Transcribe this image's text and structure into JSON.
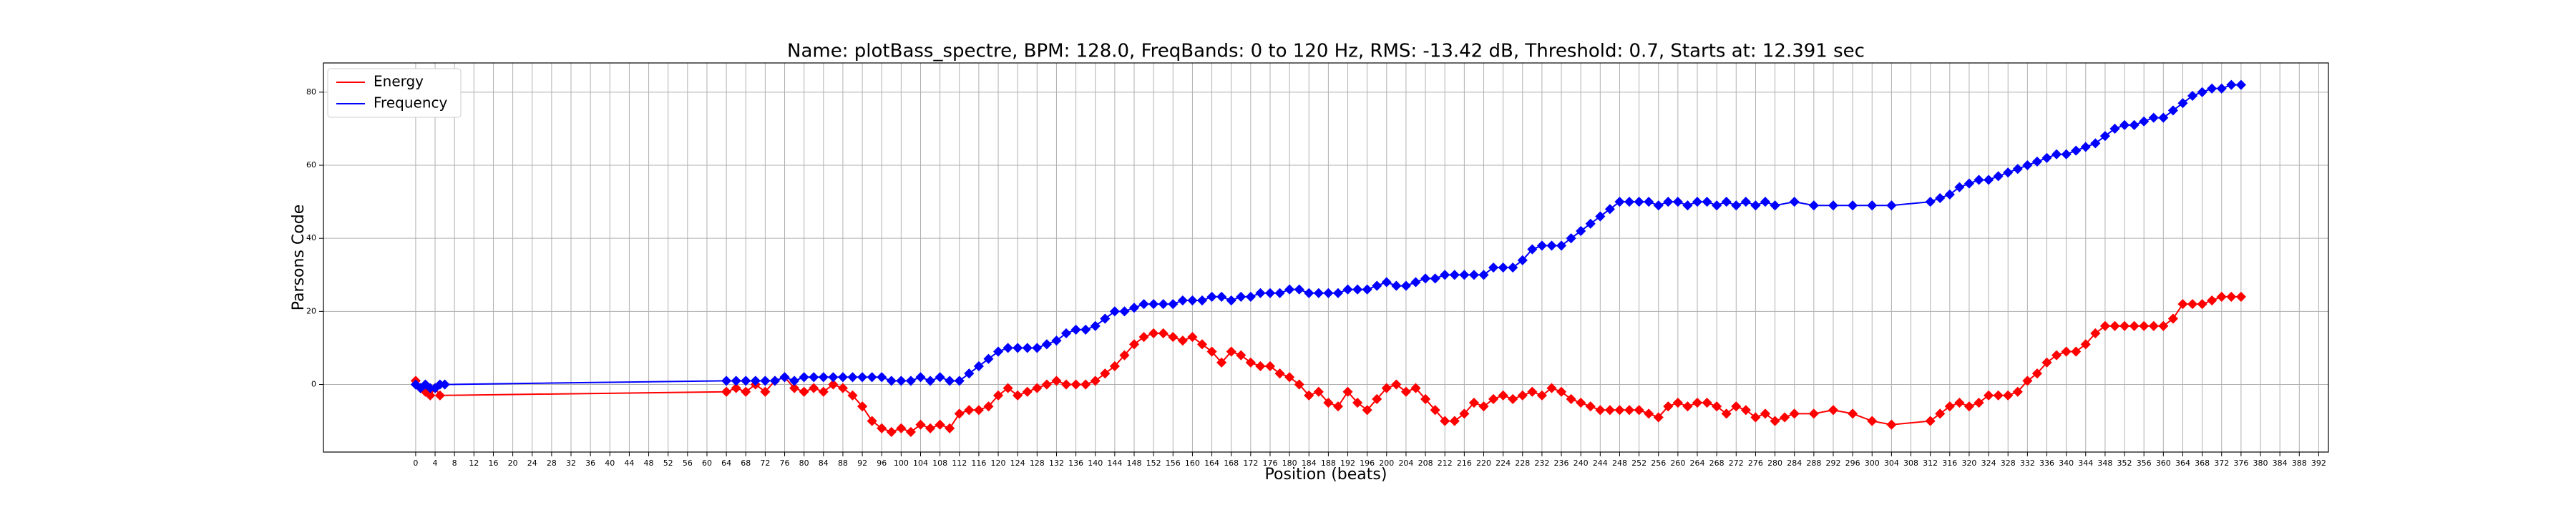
{
  "chart_data": {
    "type": "line",
    "title": "Name: plotBass_spectre, BPM: 128.0, FreqBands: 0 to 120 Hz, RMS: -13.42 dB, Threshold: 0.7, Starts at: 12.391 sec",
    "x_label": "Position (beats)",
    "y_label": "Parsons Code",
    "grid": true,
    "legend": "upper left",
    "xlim": [
      -19,
      394
    ],
    "ylim": [
      -18.5,
      88
    ],
    "xticks": [
      0,
      4,
      8,
      12,
      16,
      20,
      24,
      28,
      32,
      36,
      40,
      44,
      48,
      52,
      56,
      60,
      64,
      68,
      72,
      76,
      80,
      84,
      88,
      92,
      96,
      100,
      104,
      108,
      112,
      116,
      120,
      124,
      128,
      132,
      136,
      140,
      144,
      148,
      152,
      156,
      160,
      164,
      168,
      172,
      176,
      180,
      184,
      188,
      192,
      196,
      200,
      204,
      208,
      212,
      216,
      220,
      224,
      228,
      232,
      236,
      240,
      244,
      248,
      252,
      256,
      260,
      264,
      268,
      272,
      276,
      280,
      284,
      288,
      292,
      296,
      300,
      304,
      308,
      312,
      316,
      320,
      324,
      328,
      332,
      336,
      340,
      344,
      348,
      352,
      356,
      360,
      364,
      368,
      372,
      376,
      380,
      384,
      388,
      392
    ],
    "yticks": [
      0,
      20,
      40,
      60,
      80
    ],
    "series": [
      {
        "name": "Energy",
        "color": "#ff0000",
        "x": [
          0,
          1,
          2,
          3,
          4,
          5,
          64,
          66,
          68,
          70,
          72,
          74,
          76,
          78,
          80,
          82,
          84,
          86,
          88,
          90,
          92,
          94,
          96,
          98,
          100,
          102,
          104,
          106,
          108,
          110,
          112,
          114,
          116,
          118,
          120,
          122,
          124,
          126,
          128,
          130,
          132,
          134,
          136,
          138,
          140,
          142,
          144,
          146,
          148,
          150,
          152,
          154,
          156,
          158,
          160,
          162,
          164,
          166,
          168,
          170,
          172,
          174,
          176,
          178,
          180,
          182,
          184,
          186,
          188,
          190,
          192,
          194,
          196,
          198,
          200,
          202,
          204,
          206,
          208,
          210,
          212,
          214,
          216,
          218,
          220,
          222,
          224,
          226,
          228,
          230,
          232,
          234,
          236,
          238,
          240,
          242,
          244,
          246,
          248,
          250,
          252,
          254,
          256,
          258,
          260,
          262,
          264,
          266,
          268,
          270,
          272,
          274,
          276,
          278,
          280,
          282,
          284,
          288,
          292,
          296,
          300,
          304,
          312,
          314,
          316,
          318,
          320,
          322,
          324,
          326,
          328,
          330,
          332,
          334,
          336,
          338,
          340,
          342,
          344,
          346,
          348,
          350,
          352,
          354,
          356,
          358,
          360,
          362,
          364,
          366,
          368,
          370,
          372,
          374,
          376
        ],
        "values": [
          1,
          -1,
          -2,
          -3,
          -1,
          -3,
          -2,
          -1,
          -2,
          0,
          -2,
          1,
          2,
          -1,
          -2,
          -1,
          -2,
          0,
          -1,
          -3,
          -6,
          -10,
          -12,
          -13,
          -12,
          -13,
          -11,
          -12,
          -11,
          -12,
          -8,
          -7,
          -7,
          -6,
          -3,
          -1,
          -3,
          -2,
          -1,
          0,
          1,
          0,
          0,
          0,
          1,
          3,
          5,
          8,
          11,
          13,
          14,
          14,
          13,
          12,
          13,
          11,
          9,
          6,
          9,
          8,
          6,
          5,
          5,
          3,
          2,
          0,
          -3,
          -2,
          -5,
          -6,
          -2,
          -5,
          -7,
          -4,
          -1,
          0,
          -2,
          -1,
          -4,
          -7,
          -10,
          -10,
          -8,
          -5,
          -6,
          -4,
          -3,
          -4,
          -3,
          -2,
          -3,
          -1,
          -2,
          -4,
          -5,
          -6,
          -7,
          -7,
          -7,
          -7,
          -7,
          -8,
          -9,
          -6,
          -5,
          -6,
          -5,
          -5,
          -6,
          -8,
          -6,
          -7,
          -9,
          -8,
          -10,
          -9,
          -8,
          -8,
          -7,
          -8,
          -10,
          -11,
          -10,
          -8,
          -6,
          -5,
          -6,
          -5,
          -3,
          -3,
          -3,
          -2,
          1,
          3,
          6,
          8,
          9,
          9,
          11,
          14,
          16,
          16,
          16,
          16,
          16,
          16,
          16,
          18,
          22,
          22,
          22,
          23,
          24,
          24,
          24
        ]
      },
      {
        "name": "Frequency",
        "color": "#0000ff",
        "x": [
          0,
          1,
          2,
          3,
          4,
          5,
          6,
          64,
          66,
          68,
          70,
          72,
          74,
          76,
          78,
          80,
          82,
          84,
          86,
          88,
          90,
          92,
          94,
          96,
          98,
          100,
          102,
          104,
          106,
          108,
          110,
          112,
          114,
          116,
          118,
          120,
          122,
          124,
          126,
          128,
          130,
          132,
          134,
          136,
          138,
          140,
          142,
          144,
          146,
          148,
          150,
          152,
          154,
          156,
          158,
          160,
          162,
          164,
          166,
          168,
          170,
          172,
          174,
          176,
          178,
          180,
          182,
          184,
          186,
          188,
          190,
          192,
          194,
          196,
          198,
          200,
          202,
          204,
          206,
          208,
          210,
          212,
          214,
          216,
          218,
          220,
          222,
          224,
          226,
          228,
          230,
          232,
          234,
          236,
          238,
          240,
          242,
          244,
          246,
          248,
          250,
          252,
          254,
          256,
          258,
          260,
          262,
          264,
          266,
          268,
          270,
          272,
          274,
          276,
          278,
          280,
          284,
          288,
          292,
          296,
          300,
          304,
          312,
          314,
          316,
          318,
          320,
          322,
          324,
          326,
          328,
          330,
          332,
          334,
          336,
          338,
          340,
          342,
          344,
          346,
          348,
          350,
          352,
          354,
          356,
          358,
          360,
          362,
          364,
          366,
          368,
          370,
          372,
          374,
          376
        ],
        "values": [
          0,
          -1,
          0,
          -1,
          -1,
          0,
          0,
          1,
          1,
          1,
          1,
          1,
          1,
          2,
          1,
          2,
          2,
          2,
          2,
          2,
          2,
          2,
          2,
          2,
          1,
          1,
          1,
          2,
          1,
          2,
          1,
          1,
          3,
          5,
          7,
          9,
          10,
          10,
          10,
          10,
          11,
          12,
          14,
          15,
          15,
          16,
          18,
          20,
          20,
          21,
          22,
          22,
          22,
          22,
          23,
          23,
          23,
          24,
          24,
          23,
          24,
          24,
          25,
          25,
          25,
          26,
          26,
          25,
          25,
          25,
          25,
          26,
          26,
          26,
          27,
          28,
          27,
          27,
          28,
          29,
          29,
          30,
          30,
          30,
          30,
          30,
          32,
          32,
          32,
          34,
          37,
          38,
          38,
          38,
          40,
          42,
          44,
          46,
          48,
          50,
          50,
          50,
          50,
          49,
          50,
          50,
          49,
          50,
          50,
          49,
          50,
          49,
          50,
          49,
          50,
          49,
          50,
          49,
          49,
          49,
          49,
          49,
          50,
          51,
          52,
          54,
          55,
          56,
          56,
          57,
          58,
          59,
          60,
          61,
          62,
          63,
          63,
          64,
          65,
          66,
          68,
          70,
          71,
          71,
          72,
          73,
          73,
          75,
          77,
          79,
          80,
          81,
          81,
          82,
          82
        ]
      }
    ]
  }
}
